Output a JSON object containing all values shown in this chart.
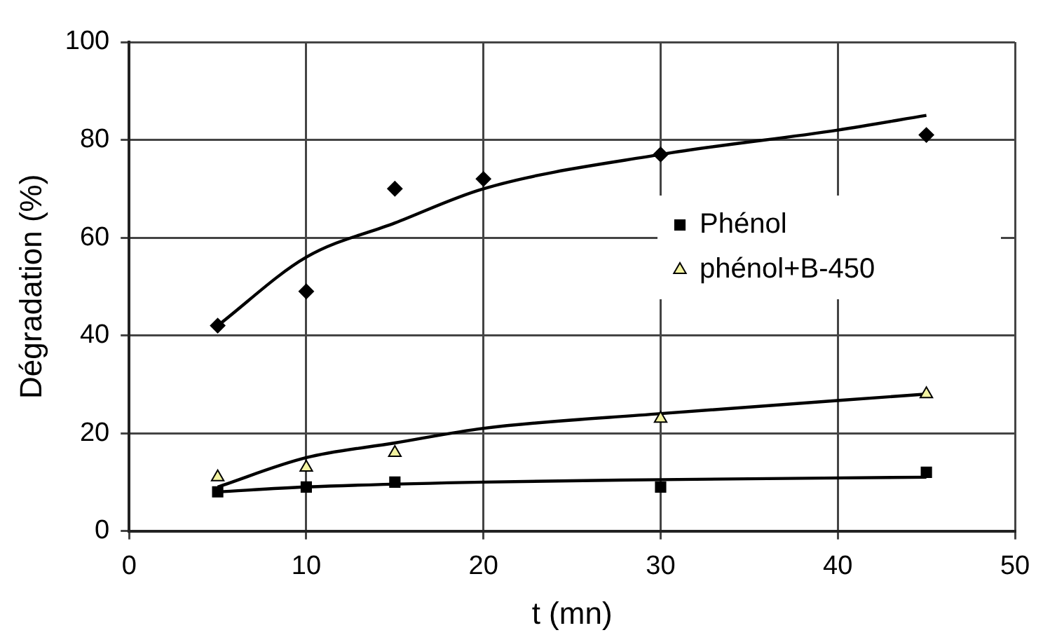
{
  "chart_data": {
    "type": "scatter",
    "xlabel": "t (mn)",
    "ylabel": "Dégradation (%)",
    "xlim": [
      0,
      50
    ],
    "xticks": [
      0,
      10,
      20,
      30,
      40,
      50
    ],
    "ylim": [
      0,
      100
    ],
    "yticks": [
      0,
      20,
      40,
      60,
      80,
      100
    ],
    "grid": true,
    "legend": "right",
    "series": [
      {
        "name": "Phénol",
        "type": "scatter",
        "marker": "square",
        "color": "#000000",
        "x": [
          5,
          10,
          15,
          30,
          45
        ],
        "values": [
          8,
          9,
          10,
          9,
          12
        ]
      },
      {
        "name": "phénol+B-450",
        "type": "scatter",
        "marker": "triangle",
        "color": "#f2f2a0",
        "x": [
          5,
          10,
          15,
          30,
          45
        ],
        "values": [
          11,
          13,
          16,
          23,
          28
        ]
      },
      {
        "type": "scatter",
        "marker": "diamond",
        "color": "#000000",
        "x": [
          5,
          10,
          15,
          20,
          30,
          45
        ],
        "values": [
          42,
          49,
          70,
          72,
          77,
          81
        ]
      },
      {
        "type": "line",
        "marker": "none",
        "color": "#000000",
        "x": [
          5,
          10,
          20,
          30,
          45
        ],
        "values": [
          8,
          9,
          10,
          10.5,
          11
        ]
      },
      {
        "type": "line",
        "marker": "none",
        "color": "#000000",
        "x": [
          5,
          10,
          15,
          20,
          30,
          45
        ],
        "values": [
          9,
          15,
          18,
          21,
          24,
          28
        ]
      },
      {
        "type": "line",
        "marker": "none",
        "color": "#000000",
        "x": [
          5,
          10,
          15,
          20,
          30,
          40,
          45
        ],
        "values": [
          42,
          56,
          63,
          70,
          77,
          82,
          85
        ]
      }
    ]
  }
}
